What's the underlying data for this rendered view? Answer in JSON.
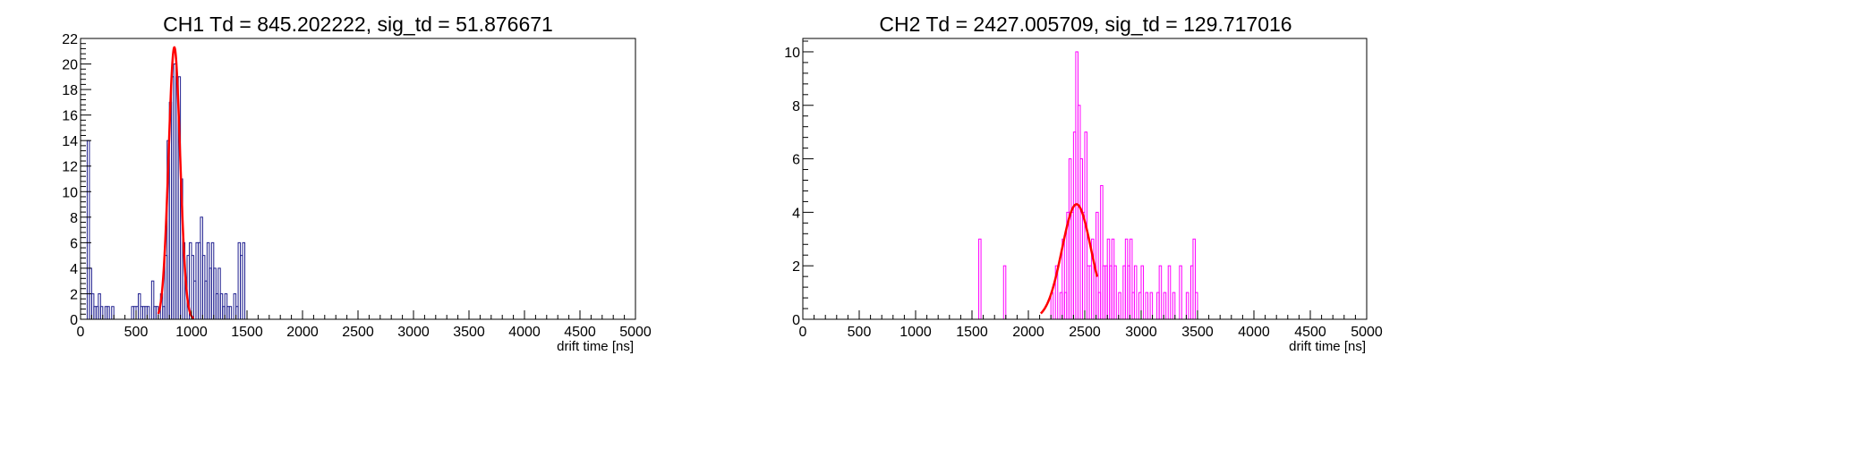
{
  "chart_data": [
    {
      "type": "histogram",
      "title": "CH1 Td = 845.202222, sig_td = 51.876671",
      "xlabel": "drift time [ns]",
      "ylabel": "",
      "xlim": [
        0,
        5000
      ],
      "ylim": [
        0,
        22
      ],
      "xticks": [
        0,
        500,
        1000,
        1500,
        2000,
        2500,
        3000,
        3500,
        4000,
        4500,
        5000
      ],
      "yticks": [
        0,
        2,
        4,
        6,
        8,
        10,
        12,
        14,
        16,
        18,
        20,
        22
      ],
      "grid": false,
      "legend": "none",
      "hist_color": "#1f1f8f",
      "fit_color": "#ff0000",
      "bin_width": 20,
      "bins": [
        [
          60,
          14
        ],
        [
          80,
          4
        ],
        [
          100,
          2
        ],
        [
          120,
          1
        ],
        [
          140,
          1
        ],
        [
          160,
          2
        ],
        [
          180,
          1
        ],
        [
          220,
          1
        ],
        [
          240,
          1
        ],
        [
          280,
          1
        ],
        [
          460,
          1
        ],
        [
          480,
          1
        ],
        [
          500,
          1
        ],
        [
          520,
          2
        ],
        [
          540,
          1
        ],
        [
          560,
          1
        ],
        [
          580,
          1
        ],
        [
          600,
          1
        ],
        [
          640,
          3
        ],
        [
          660,
          1
        ],
        [
          680,
          1
        ],
        [
          720,
          2
        ],
        [
          740,
          1
        ],
        [
          760,
          5
        ],
        [
          780,
          14
        ],
        [
          800,
          17
        ],
        [
          820,
          19
        ],
        [
          840,
          20
        ],
        [
          860,
          19
        ],
        [
          880,
          19
        ],
        [
          900,
          11
        ],
        [
          920,
          6
        ],
        [
          940,
          3
        ],
        [
          960,
          5
        ],
        [
          980,
          6
        ],
        [
          1000,
          5
        ],
        [
          1020,
          3
        ],
        [
          1040,
          6
        ],
        [
          1060,
          6
        ],
        [
          1080,
          8
        ],
        [
          1100,
          5
        ],
        [
          1120,
          3
        ],
        [
          1140,
          6
        ],
        [
          1160,
          4
        ],
        [
          1180,
          6
        ],
        [
          1200,
          4
        ],
        [
          1220,
          2
        ],
        [
          1240,
          4
        ],
        [
          1260,
          2
        ],
        [
          1280,
          1
        ],
        [
          1300,
          2
        ],
        [
          1320,
          1
        ],
        [
          1340,
          1
        ],
        [
          1380,
          2
        ],
        [
          1400,
          1
        ],
        [
          1420,
          6
        ],
        [
          1440,
          5
        ],
        [
          1460,
          6
        ]
      ],
      "fit": {
        "mean": 845.202222,
        "sigma": 51.876671,
        "amplitude": 21.3,
        "range": [
          700,
          1020
        ]
      }
    },
    {
      "type": "histogram",
      "title": "CH2 Td = 2427.005709, sig_td = 129.717016",
      "xlabel": "drift time [ns]",
      "ylabel": "",
      "xlim": [
        0,
        5000
      ],
      "ylim": [
        0,
        10.5
      ],
      "xticks": [
        0,
        500,
        1000,
        1500,
        2000,
        2500,
        3000,
        3500,
        4000,
        4500,
        5000
      ],
      "yticks": [
        0,
        2,
        4,
        6,
        8,
        10
      ],
      "grid": false,
      "legend": "none",
      "hist_color": "#ff00ff",
      "fit_color": "#ff0000",
      "bin_width": 20,
      "bins": [
        [
          1560,
          3
        ],
        [
          1780,
          2
        ],
        [
          2200,
          1
        ],
        [
          2240,
          2
        ],
        [
          2280,
          1
        ],
        [
          2300,
          3
        ],
        [
          2320,
          1
        ],
        [
          2340,
          4
        ],
        [
          2360,
          6
        ],
        [
          2380,
          4
        ],
        [
          2400,
          7
        ],
        [
          2420,
          10
        ],
        [
          2440,
          8
        ],
        [
          2460,
          6
        ],
        [
          2480,
          4
        ],
        [
          2500,
          7
        ],
        [
          2520,
          2
        ],
        [
          2540,
          2
        ],
        [
          2560,
          3
        ],
        [
          2580,
          2
        ],
        [
          2600,
          4
        ],
        [
          2620,
          1
        ],
        [
          2640,
          5
        ],
        [
          2660,
          2
        ],
        [
          2680,
          2
        ],
        [
          2700,
          3
        ],
        [
          2720,
          2
        ],
        [
          2740,
          3
        ],
        [
          2760,
          2
        ],
        [
          2800,
          1
        ],
        [
          2840,
          2
        ],
        [
          2860,
          3
        ],
        [
          2880,
          2
        ],
        [
          2900,
          3
        ],
        [
          2920,
          1
        ],
        [
          2940,
          2
        ],
        [
          2980,
          1
        ],
        [
          3000,
          2
        ],
        [
          3040,
          1
        ],
        [
          3080,
          1
        ],
        [
          3140,
          1
        ],
        [
          3160,
          2
        ],
        [
          3200,
          1
        ],
        [
          3240,
          2
        ],
        [
          3280,
          1
        ],
        [
          3340,
          2
        ],
        [
          3400,
          1
        ],
        [
          3440,
          2
        ],
        [
          3460,
          3
        ],
        [
          3480,
          1
        ]
      ],
      "fit": {
        "mean": 2427.005709,
        "sigma": 129.717016,
        "amplitude": 4.3,
        "range": [
          2110,
          2610
        ]
      }
    }
  ]
}
